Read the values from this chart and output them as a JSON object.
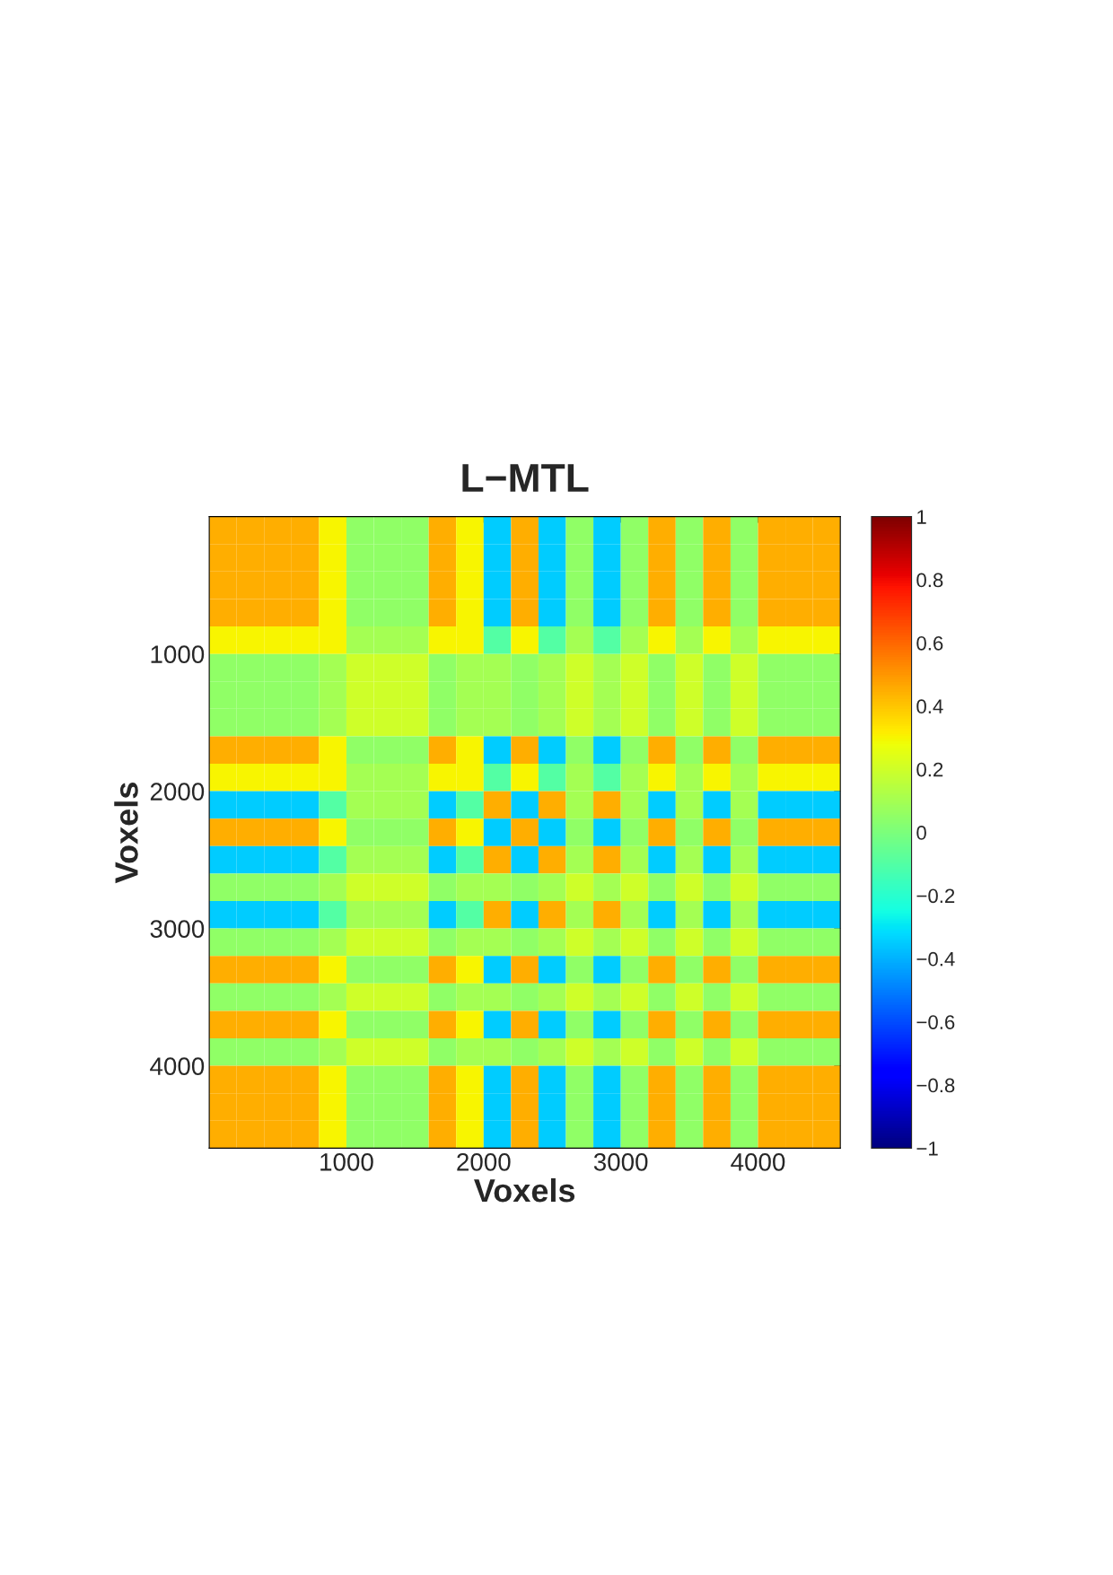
{
  "chart_data": {
    "type": "heatmap",
    "title": "L−MTL",
    "xlabel": "Voxels",
    "ylabel": "Voxels",
    "xlim": [
      0,
      4600
    ],
    "ylim": [
      4600,
      0
    ],
    "xticks": [
      1000,
      2000,
      3000,
      4000
    ],
    "yticks": [
      1000,
      2000,
      3000,
      4000
    ],
    "clim": [
      -1,
      1
    ],
    "cticks": [
      {
        "value": -1,
        "label": "−1"
      },
      {
        "value": -0.8,
        "label": "−0.8"
      },
      {
        "value": -0.6,
        "label": "−0.6"
      },
      {
        "value": -0.4,
        "label": "−0.4"
      },
      {
        "value": -0.2,
        "label": "−0.2"
      },
      0,
      0.2,
      0.4,
      0.6,
      0.8,
      1
    ],
    "cells": [
      [
        0.45,
        0.45,
        0.45,
        0.45,
        0.3,
        0.05,
        0.05,
        0.05,
        0.45,
        0.3,
        -0.35,
        0.45,
        -0.35,
        0.05,
        -0.35,
        0.05,
        0.45,
        0.05,
        0.45,
        0.05,
        0.45,
        0.45,
        0.45
      ],
      [
        0.45,
        0.45,
        0.45,
        0.45,
        0.3,
        0.05,
        0.05,
        0.05,
        0.45,
        0.3,
        -0.35,
        0.45,
        -0.35,
        0.05,
        -0.35,
        0.05,
        0.45,
        0.05,
        0.45,
        0.05,
        0.45,
        0.45,
        0.45
      ],
      [
        0.45,
        0.45,
        0.45,
        0.45,
        0.3,
        0.05,
        0.05,
        0.05,
        0.45,
        0.3,
        -0.35,
        0.45,
        -0.35,
        0.05,
        -0.35,
        0.05,
        0.45,
        0.05,
        0.45,
        0.05,
        0.45,
        0.45,
        0.45
      ],
      [
        0.45,
        0.45,
        0.45,
        0.45,
        0.3,
        0.05,
        0.05,
        0.05,
        0.45,
        0.3,
        -0.35,
        0.45,
        -0.35,
        0.05,
        -0.35,
        0.05,
        0.45,
        0.05,
        0.45,
        0.05,
        0.45,
        0.45,
        0.45
      ],
      [
        0.3,
        0.3,
        0.3,
        0.3,
        0.3,
        0.1,
        0.1,
        0.1,
        0.3,
        0.3,
        -0.1,
        0.3,
        -0.1,
        0.1,
        -0.1,
        0.1,
        0.3,
        0.1,
        0.3,
        0.1,
        0.3,
        0.3,
        0.3
      ],
      [
        0.05,
        0.05,
        0.05,
        0.05,
        0.1,
        0.2,
        0.2,
        0.2,
        0.05,
        0.1,
        0.1,
        0.05,
        0.1,
        0.2,
        0.1,
        0.2,
        0.05,
        0.2,
        0.05,
        0.2,
        0.05,
        0.05,
        0.05
      ],
      [
        0.05,
        0.05,
        0.05,
        0.05,
        0.1,
        0.2,
        0.2,
        0.2,
        0.05,
        0.1,
        0.1,
        0.05,
        0.1,
        0.2,
        0.1,
        0.2,
        0.05,
        0.2,
        0.05,
        0.2,
        0.05,
        0.05,
        0.05
      ],
      [
        0.05,
        0.05,
        0.05,
        0.05,
        0.1,
        0.2,
        0.2,
        0.2,
        0.05,
        0.1,
        0.1,
        0.05,
        0.1,
        0.2,
        0.1,
        0.2,
        0.05,
        0.2,
        0.05,
        0.2,
        0.05,
        0.05,
        0.05
      ],
      [
        0.45,
        0.45,
        0.45,
        0.45,
        0.3,
        0.05,
        0.05,
        0.05,
        0.45,
        0.3,
        -0.35,
        0.45,
        -0.35,
        0.05,
        -0.35,
        0.05,
        0.45,
        0.05,
        0.45,
        0.05,
        0.45,
        0.45,
        0.45
      ],
      [
        0.3,
        0.3,
        0.3,
        0.3,
        0.3,
        0.1,
        0.1,
        0.1,
        0.3,
        0.3,
        -0.1,
        0.3,
        -0.1,
        0.1,
        -0.1,
        0.1,
        0.3,
        0.1,
        0.3,
        0.1,
        0.3,
        0.3,
        0.3
      ],
      [
        -0.35,
        -0.35,
        -0.35,
        -0.35,
        -0.1,
        0.1,
        0.1,
        0.1,
        -0.35,
        -0.1,
        0.45,
        -0.35,
        0.45,
        0.1,
        0.45,
        0.1,
        -0.35,
        0.1,
        -0.35,
        0.1,
        -0.35,
        -0.35,
        -0.35
      ],
      [
        0.45,
        0.45,
        0.45,
        0.45,
        0.3,
        0.05,
        0.05,
        0.05,
        0.45,
        0.3,
        -0.35,
        0.45,
        -0.35,
        0.05,
        -0.35,
        0.05,
        0.45,
        0.05,
        0.45,
        0.05,
        0.45,
        0.45,
        0.45
      ],
      [
        -0.35,
        -0.35,
        -0.35,
        -0.35,
        -0.1,
        0.1,
        0.1,
        0.1,
        -0.35,
        -0.1,
        0.45,
        -0.35,
        0.45,
        0.1,
        0.45,
        0.1,
        -0.35,
        0.1,
        -0.35,
        0.1,
        -0.35,
        -0.35,
        -0.35
      ],
      [
        0.05,
        0.05,
        0.05,
        0.05,
        0.1,
        0.2,
        0.2,
        0.2,
        0.05,
        0.1,
        0.1,
        0.05,
        0.1,
        0.2,
        0.1,
        0.2,
        0.05,
        0.2,
        0.05,
        0.2,
        0.05,
        0.05,
        0.05
      ],
      [
        -0.35,
        -0.35,
        -0.35,
        -0.35,
        -0.1,
        0.1,
        0.1,
        0.1,
        -0.35,
        -0.1,
        0.45,
        -0.35,
        0.45,
        0.1,
        0.45,
        0.1,
        -0.35,
        0.1,
        -0.35,
        0.1,
        -0.35,
        -0.35,
        -0.35
      ],
      [
        0.05,
        0.05,
        0.05,
        0.05,
        0.1,
        0.2,
        0.2,
        0.2,
        0.05,
        0.1,
        0.1,
        0.05,
        0.1,
        0.2,
        0.1,
        0.2,
        0.05,
        0.2,
        0.05,
        0.2,
        0.05,
        0.05,
        0.05
      ],
      [
        0.45,
        0.45,
        0.45,
        0.45,
        0.3,
        0.05,
        0.05,
        0.05,
        0.45,
        0.3,
        -0.35,
        0.45,
        -0.35,
        0.05,
        -0.35,
        0.05,
        0.45,
        0.05,
        0.45,
        0.05,
        0.45,
        0.45,
        0.45
      ],
      [
        0.05,
        0.05,
        0.05,
        0.05,
        0.1,
        0.2,
        0.2,
        0.2,
        0.05,
        0.1,
        0.1,
        0.05,
        0.1,
        0.2,
        0.1,
        0.2,
        0.05,
        0.2,
        0.05,
        0.2,
        0.05,
        0.05,
        0.05
      ],
      [
        0.45,
        0.45,
        0.45,
        0.45,
        0.3,
        0.05,
        0.05,
        0.05,
        0.45,
        0.3,
        -0.35,
        0.45,
        -0.35,
        0.05,
        -0.35,
        0.05,
        0.45,
        0.05,
        0.45,
        0.05,
        0.45,
        0.45,
        0.45
      ],
      [
        0.05,
        0.05,
        0.05,
        0.05,
        0.1,
        0.2,
        0.2,
        0.2,
        0.05,
        0.1,
        0.1,
        0.05,
        0.1,
        0.2,
        0.1,
        0.2,
        0.05,
        0.2,
        0.05,
        0.2,
        0.05,
        0.05,
        0.05
      ],
      [
        0.45,
        0.45,
        0.45,
        0.45,
        0.3,
        0.05,
        0.05,
        0.05,
        0.45,
        0.3,
        -0.35,
        0.45,
        -0.35,
        0.05,
        -0.35,
        0.05,
        0.45,
        0.05,
        0.45,
        0.05,
        0.45,
        0.45,
        0.45
      ],
      [
        0.45,
        0.45,
        0.45,
        0.45,
        0.3,
        0.05,
        0.05,
        0.05,
        0.45,
        0.3,
        -0.35,
        0.45,
        -0.35,
        0.05,
        -0.35,
        0.05,
        0.45,
        0.05,
        0.45,
        0.05,
        0.45,
        0.45,
        0.45
      ],
      [
        0.45,
        0.45,
        0.45,
        0.45,
        0.3,
        0.05,
        0.05,
        0.05,
        0.45,
        0.3,
        -0.35,
        0.45,
        -0.35,
        0.05,
        -0.35,
        0.05,
        0.45,
        0.05,
        0.45,
        0.05,
        0.45,
        0.45,
        0.45
      ]
    ]
  }
}
